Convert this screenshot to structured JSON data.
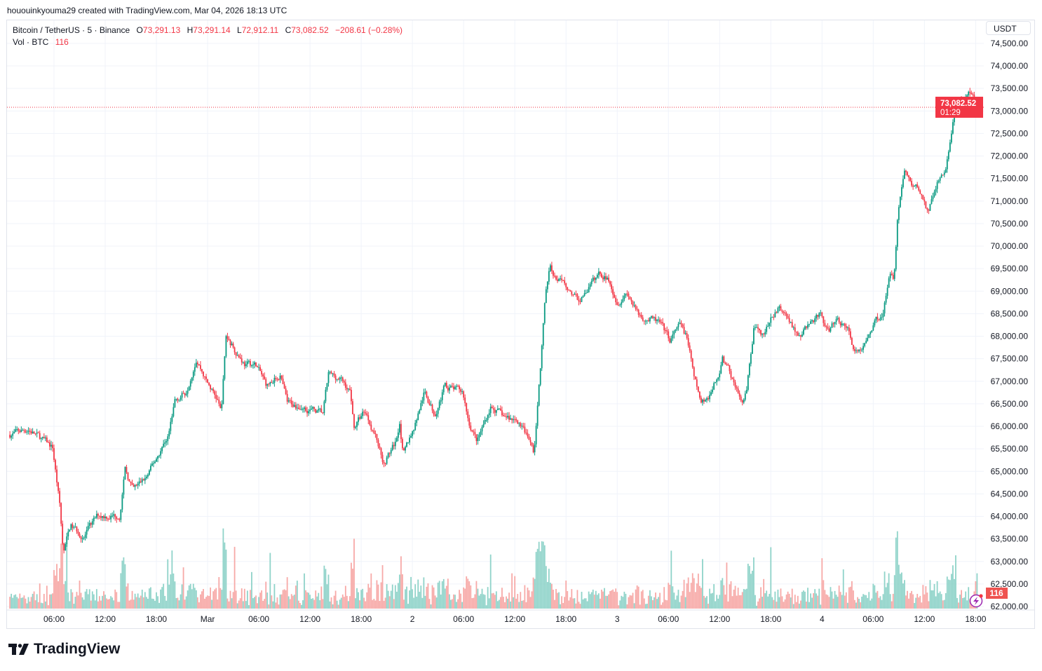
{
  "credit": "hououinkyouma29 created with TradingView.com, Mar 04, 2026 18:13 UTC",
  "legend": {
    "symbol": "Bitcoin / TetherUS · 5 · Binance",
    "open_label": "O",
    "open": "73,291.13",
    "high_label": "H",
    "high": "73,291.14",
    "low_label": "L",
    "low": "72,912.11",
    "close_label": "C",
    "close": "73,082.52",
    "change": "−208.61 (−0.28%)",
    "volume_label": "Vol · BTC",
    "volume": "116"
  },
  "currency_button": "USDT",
  "last_price_label": "73,082.52",
  "countdown": "01:29",
  "volume_badge": "116",
  "logo_text": "TradingView",
  "colors": {
    "up": "#089981",
    "down": "#f23645",
    "volume_up": "#8fd3c9",
    "volume_down": "#f7a9a7",
    "grid": "#f0f3fa"
  },
  "icons": [
    "lightning-icon",
    "tradingview-logo"
  ],
  "chart_data": {
    "type": "candlestick",
    "interval": "5m",
    "ylabel": "USDT",
    "ylim": [
      62000,
      74700
    ],
    "grid": true,
    "y_ticks": [
      "74,500.00",
      "74,000.00",
      "73,500.00",
      "73,000.00",
      "72,500.00",
      "72,000.00",
      "71,500.00",
      "71,000.00",
      "70,500.00",
      "70,000.00",
      "69,500.00",
      "69,000.00",
      "68,500.00",
      "68,000.00",
      "67,500.00",
      "67,000.00",
      "66,500.00",
      "66,000.00",
      "65,500.00",
      "65,000.00",
      "64,500.00",
      "64,000.00",
      "63,500.00",
      "63,000.00",
      "62,500.00",
      "62,000.00"
    ],
    "x_ticks": [
      {
        "t": "2026-02-28T06:00",
        "label": "06:00"
      },
      {
        "t": "2026-02-28T12:00",
        "label": "12:00"
      },
      {
        "t": "2026-02-28T18:00",
        "label": "18:00"
      },
      {
        "t": "2026-03-01T00:00",
        "label": "Mar"
      },
      {
        "t": "2026-03-01T06:00",
        "label": "06:00"
      },
      {
        "t": "2026-03-01T12:00",
        "label": "12:00"
      },
      {
        "t": "2026-03-01T18:00",
        "label": "18:00"
      },
      {
        "t": "2026-03-02T00:00",
        "label": "2"
      },
      {
        "t": "2026-03-02T06:00",
        "label": "06:00"
      },
      {
        "t": "2026-03-02T12:00",
        "label": "12:00"
      },
      {
        "t": "2026-03-02T18:00",
        "label": "18:00"
      },
      {
        "t": "2026-03-03T00:00",
        "label": "3"
      },
      {
        "t": "2026-03-03T06:00",
        "label": "06:00"
      },
      {
        "t": "2026-03-03T12:00",
        "label": "12:00"
      },
      {
        "t": "2026-03-03T18:00",
        "label": "18:00"
      },
      {
        "t": "2026-03-04T00:00",
        "label": "4"
      },
      {
        "t": "2026-03-04T06:00",
        "label": "06:00"
      },
      {
        "t": "2026-03-04T12:00",
        "label": "12:00"
      },
      {
        "t": "2026-03-04T18:00",
        "label": "18:00"
      }
    ],
    "last_price": 73082.52,
    "price_path": [
      [
        "2026-02-28T00:40",
        65810
      ],
      [
        "2026-02-28T03:00",
        65940
      ],
      [
        "2026-02-28T05:50",
        65530
      ],
      [
        "2026-02-28T06:40",
        64260
      ],
      [
        "2026-02-28T07:05",
        63170
      ],
      [
        "2026-02-28T07:55",
        63790
      ],
      [
        "2026-02-28T09:30",
        63560
      ],
      [
        "2026-02-28T11:10",
        64020
      ],
      [
        "2026-02-28T13:40",
        64020
      ],
      [
        "2026-02-28T14:20",
        65030
      ],
      [
        "2026-02-28T15:15",
        64570
      ],
      [
        "2026-02-28T16:55",
        64880
      ],
      [
        "2026-02-28T18:10",
        65350
      ],
      [
        "2026-02-28T19:25",
        65810
      ],
      [
        "2026-02-28T20:10",
        66590
      ],
      [
        "2026-02-28T21:25",
        66750
      ],
      [
        "2026-02-28T22:40",
        67530
      ],
      [
        "2026-02-28T23:55",
        66980
      ],
      [
        "2026-03-01T01:10",
        66590
      ],
      [
        "2026-03-01T01:35",
        66280
      ],
      [
        "2026-03-01T02:10",
        67990
      ],
      [
        "2026-03-01T02:45",
        67840
      ],
      [
        "2026-03-01T04:25",
        67370
      ],
      [
        "2026-03-01T05:40",
        67370
      ],
      [
        "2026-03-01T06:55",
        66900
      ],
      [
        "2026-03-01T08:30",
        67140
      ],
      [
        "2026-03-01T09:20",
        66510
      ],
      [
        "2026-03-01T11:00",
        66440
      ],
      [
        "2026-03-01T13:30",
        66280
      ],
      [
        "2026-03-01T14:10",
        67140
      ],
      [
        "2026-03-01T15:30",
        67060
      ],
      [
        "2026-03-01T16:45",
        66750
      ],
      [
        "2026-03-01T17:10",
        65970
      ],
      [
        "2026-03-01T18:25",
        66360
      ],
      [
        "2026-03-01T19:40",
        65810
      ],
      [
        "2026-03-01T20:40",
        65190
      ],
      [
        "2026-03-01T22:05",
        65660
      ],
      [
        "2026-03-01T22:30",
        66120
      ],
      [
        "2026-03-01T22:55",
        65350
      ],
      [
        "2026-03-02T00:10",
        65970
      ],
      [
        "2026-03-02T01:25",
        66750
      ],
      [
        "2026-03-02T02:35",
        66280
      ],
      [
        "2026-03-02T03:50",
        66900
      ],
      [
        "2026-03-02T05:55",
        66750
      ],
      [
        "2026-03-02T06:35",
        66120
      ],
      [
        "2026-03-02T07:35",
        65660
      ],
      [
        "2026-03-02T09:10",
        66440
      ],
      [
        "2026-03-02T10:50",
        66200
      ],
      [
        "2026-03-02T12:30",
        66120
      ],
      [
        "2026-03-02T13:45",
        65660
      ],
      [
        "2026-03-02T14:15",
        65420
      ],
      [
        "2026-03-02T14:55",
        67060
      ],
      [
        "2026-03-02T15:35",
        68930
      ],
      [
        "2026-03-02T16:10",
        69550
      ],
      [
        "2026-03-02T17:00",
        69240
      ],
      [
        "2026-03-02T18:15",
        69080
      ],
      [
        "2026-03-02T19:30",
        68770
      ],
      [
        "2026-03-02T20:40",
        69080
      ],
      [
        "2026-03-02T21:55",
        69390
      ],
      [
        "2026-03-02T23:10",
        69240
      ],
      [
        "2026-03-03T00:00",
        68770
      ],
      [
        "2026-03-03T01:10",
        69000
      ],
      [
        "2026-03-03T02:25",
        68460
      ],
      [
        "2026-03-03T04:55",
        68300
      ],
      [
        "2026-03-03T06:10",
        67910
      ],
      [
        "2026-03-03T07:20",
        68230
      ],
      [
        "2026-03-03T08:10",
        67990
      ],
      [
        "2026-03-03T09:00",
        67060
      ],
      [
        "2026-03-03T09:50",
        66510
      ],
      [
        "2026-03-03T10:40",
        66670
      ],
      [
        "2026-03-03T11:55",
        67140
      ],
      [
        "2026-03-03T12:20",
        67530
      ],
      [
        "2026-03-03T13:30",
        67060
      ],
      [
        "2026-03-03T14:45",
        66440
      ],
      [
        "2026-03-03T15:10",
        66750
      ],
      [
        "2026-03-03T16:00",
        68150
      ],
      [
        "2026-03-03T16:50",
        67990
      ],
      [
        "2026-03-03T18:05",
        68380
      ],
      [
        "2026-03-03T18:55",
        68620
      ],
      [
        "2026-03-03T20:05",
        68380
      ],
      [
        "2026-03-03T21:20",
        67990
      ],
      [
        "2026-03-03T22:35",
        68300
      ],
      [
        "2026-03-03T23:50",
        68460
      ],
      [
        "2026-03-04T00:40",
        68070
      ],
      [
        "2026-03-04T01:50",
        68380
      ],
      [
        "2026-03-04T03:05",
        68150
      ],
      [
        "2026-03-04T03:55",
        67600
      ],
      [
        "2026-03-04T05:10",
        67840
      ],
      [
        "2026-03-04T06:00",
        68300
      ],
      [
        "2026-03-04T07:10",
        68540
      ],
      [
        "2026-03-04T08:00",
        69390
      ],
      [
        "2026-03-04T08:25",
        69320
      ],
      [
        "2026-03-04T08:50",
        70640
      ],
      [
        "2026-03-04T09:40",
        71730
      ],
      [
        "2026-03-04T10:30",
        71340
      ],
      [
        "2026-03-04T11:20",
        71260
      ],
      [
        "2026-03-04T12:30",
        70720
      ],
      [
        "2026-03-04T13:20",
        71340
      ],
      [
        "2026-03-04T14:30",
        71730
      ],
      [
        "2026-03-04T15:10",
        72510
      ],
      [
        "2026-03-04T15:45",
        73280
      ],
      [
        "2026-03-04T16:35",
        73130
      ],
      [
        "2026-03-04T17:10",
        73440
      ],
      [
        "2026-03-04T18:10",
        73082.52
      ]
    ]
  }
}
